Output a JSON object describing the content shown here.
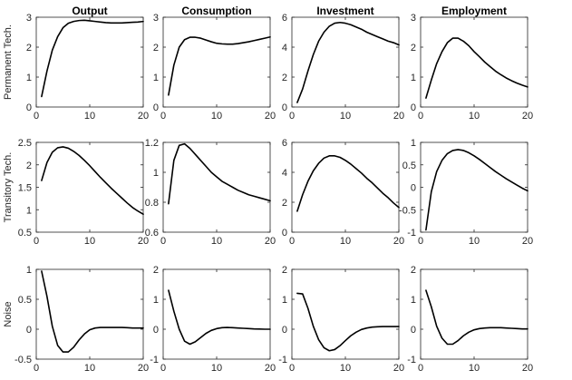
{
  "chart_data": {
    "type": "line",
    "layout": "3x4 grid of impulse-response panels",
    "column_titles": [
      "Output",
      "Consumption",
      "Investment",
      "Employment"
    ],
    "row_labels": [
      "Permanent Tech.",
      "Transitory Tech.",
      "Noise"
    ],
    "x": [
      1,
      2,
      3,
      4,
      5,
      6,
      7,
      8,
      9,
      10,
      11,
      12,
      13,
      14,
      15,
      16,
      17,
      18,
      19,
      20
    ],
    "xlim": [
      0,
      20
    ],
    "xticks": [
      0,
      10,
      20
    ],
    "grid": false,
    "line_color": "#000000",
    "panels": [
      {
        "row": 0,
        "col": 0,
        "ylim": [
          0,
          3
        ],
        "yticks": [
          0,
          1,
          2,
          3
        ],
        "values": [
          0.35,
          1.2,
          1.9,
          2.35,
          2.65,
          2.8,
          2.86,
          2.89,
          2.9,
          2.88,
          2.86,
          2.84,
          2.82,
          2.81,
          2.81,
          2.81,
          2.82,
          2.83,
          2.84,
          2.86
        ]
      },
      {
        "row": 0,
        "col": 1,
        "ylim": [
          0,
          3
        ],
        "yticks": [
          0,
          1,
          2,
          3
        ],
        "values": [
          0.4,
          1.4,
          2.0,
          2.25,
          2.33,
          2.33,
          2.3,
          2.24,
          2.18,
          2.13,
          2.11,
          2.1,
          2.1,
          2.12,
          2.15,
          2.18,
          2.22,
          2.26,
          2.3,
          2.34
        ]
      },
      {
        "row": 0,
        "col": 2,
        "ylim": [
          0,
          6
        ],
        "yticks": [
          0,
          2,
          4,
          6
        ],
        "values": [
          0.3,
          1.2,
          2.4,
          3.5,
          4.4,
          5.0,
          5.4,
          5.6,
          5.65,
          5.6,
          5.5,
          5.35,
          5.2,
          5.0,
          4.85,
          4.7,
          4.55,
          4.4,
          4.3,
          4.15
        ]
      },
      {
        "row": 0,
        "col": 3,
        "ylim": [
          0,
          3
        ],
        "yticks": [
          0,
          1,
          2,
          3
        ],
        "values": [
          0.3,
          0.9,
          1.45,
          1.85,
          2.15,
          2.3,
          2.3,
          2.2,
          2.05,
          1.85,
          1.68,
          1.5,
          1.35,
          1.2,
          1.08,
          0.97,
          0.88,
          0.8,
          0.73,
          0.67
        ]
      },
      {
        "row": 1,
        "col": 0,
        "ylim": [
          0.5,
          2.5
        ],
        "yticks": [
          0.5,
          1,
          1.5,
          2,
          2.5
        ],
        "values": [
          1.65,
          2.05,
          2.28,
          2.38,
          2.4,
          2.37,
          2.3,
          2.21,
          2.1,
          1.98,
          1.85,
          1.72,
          1.6,
          1.48,
          1.37,
          1.26,
          1.15,
          1.05,
          0.97,
          0.9
        ]
      },
      {
        "row": 1,
        "col": 1,
        "ylim": [
          0.6,
          1.2
        ],
        "yticks": [
          0.6,
          0.8,
          1,
          1.2
        ],
        "values": [
          0.79,
          1.08,
          1.18,
          1.19,
          1.16,
          1.12,
          1.08,
          1.04,
          1.0,
          0.97,
          0.94,
          0.92,
          0.9,
          0.88,
          0.865,
          0.85,
          0.84,
          0.83,
          0.82,
          0.81
        ]
      },
      {
        "row": 1,
        "col": 2,
        "ylim": [
          0,
          6
        ],
        "yticks": [
          0,
          2,
          4,
          6
        ],
        "values": [
          1.4,
          2.5,
          3.4,
          4.1,
          4.6,
          4.95,
          5.1,
          5.1,
          5.0,
          4.8,
          4.55,
          4.25,
          3.95,
          3.6,
          3.3,
          2.95,
          2.6,
          2.3,
          1.95,
          1.65
        ]
      },
      {
        "row": 1,
        "col": 3,
        "ylim": [
          -1,
          1
        ],
        "yticks": [
          -1,
          -0.5,
          0,
          0.5,
          1
        ],
        "values": [
          -0.95,
          -0.1,
          0.35,
          0.6,
          0.75,
          0.82,
          0.84,
          0.82,
          0.77,
          0.7,
          0.62,
          0.53,
          0.44,
          0.35,
          0.27,
          0.19,
          0.12,
          0.05,
          -0.02,
          -0.08
        ]
      },
      {
        "row": 2,
        "col": 0,
        "ylim": [
          -0.5,
          1
        ],
        "yticks": [
          -0.5,
          0,
          0.5,
          1
        ],
        "values": [
          0.97,
          0.55,
          0.05,
          -0.27,
          -0.38,
          -0.38,
          -0.3,
          -0.18,
          -0.08,
          -0.01,
          0.02,
          0.03,
          0.03,
          0.03,
          0.03,
          0.03,
          0.025,
          0.02,
          0.02,
          0.02
        ]
      },
      {
        "row": 2,
        "col": 1,
        "ylim": [
          -1,
          2
        ],
        "yticks": [
          -1,
          0,
          1,
          2
        ],
        "values": [
          1.3,
          0.6,
          0.0,
          -0.4,
          -0.5,
          -0.42,
          -0.28,
          -0.14,
          -0.04,
          0.02,
          0.05,
          0.06,
          0.05,
          0.04,
          0.03,
          0.02,
          0.01,
          0.005,
          0.0,
          0.0
        ]
      },
      {
        "row": 2,
        "col": 2,
        "ylim": [
          -1,
          2
        ],
        "yticks": [
          -1,
          0,
          1,
          2
        ],
        "values": [
          1.2,
          1.18,
          0.7,
          0.1,
          -0.35,
          -0.62,
          -0.72,
          -0.68,
          -0.55,
          -0.38,
          -0.22,
          -0.1,
          -0.01,
          0.04,
          0.07,
          0.08,
          0.09,
          0.09,
          0.09,
          0.09
        ]
      },
      {
        "row": 2,
        "col": 3,
        "ylim": [
          -1,
          2
        ],
        "yticks": [
          -1,
          0,
          1,
          2
        ],
        "values": [
          1.3,
          0.75,
          0.1,
          -0.3,
          -0.5,
          -0.5,
          -0.38,
          -0.22,
          -0.1,
          -0.02,
          0.02,
          0.04,
          0.05,
          0.05,
          0.05,
          0.04,
          0.03,
          0.02,
          0.01,
          0.01
        ]
      }
    ]
  }
}
